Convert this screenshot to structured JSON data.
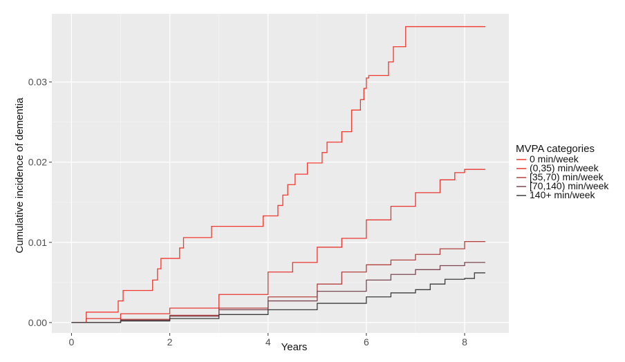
{
  "chart_data": {
    "type": "line",
    "step": true,
    "xlabel": "Years",
    "ylabel": "Cumulative incidence of dementia",
    "xlim": [
      -0.4,
      8.9
    ],
    "ylim": [
      -0.0013,
      0.0385
    ],
    "x_ticks": [
      0,
      2,
      4,
      6,
      8
    ],
    "x_tick_labels": [
      "0",
      "2",
      "4",
      "6",
      "8"
    ],
    "y_ticks": [
      0.0,
      0.01,
      0.02,
      0.03
    ],
    "y_tick_labels": [
      "0.00",
      "0.01",
      "0.02",
      "0.03"
    ],
    "grid": true,
    "background": "#ebebeb",
    "legend": {
      "title": "MVPA categories",
      "placement": "right"
    },
    "series": [
      {
        "name": "0 min/week",
        "color": "#f2372c",
        "points": [
          [
            0,
            0
          ],
          [
            0.3,
            0.0013
          ],
          [
            0.95,
            0.0027
          ],
          [
            1.05,
            0.004
          ],
          [
            1.65,
            0.0053
          ],
          [
            1.75,
            0.0067
          ],
          [
            1.82,
            0.008
          ],
          [
            2.2,
            0.0093
          ],
          [
            2.28,
            0.0106
          ],
          [
            2.85,
            0.012
          ],
          [
            3.9,
            0.0133
          ],
          [
            4.2,
            0.0146
          ],
          [
            4.3,
            0.0159
          ],
          [
            4.4,
            0.0172
          ],
          [
            4.55,
            0.0185
          ],
          [
            4.8,
            0.0199
          ],
          [
            5.1,
            0.0212
          ],
          [
            5.2,
            0.0225
          ],
          [
            5.5,
            0.0238
          ],
          [
            5.7,
            0.0265
          ],
          [
            5.88,
            0.0278
          ],
          [
            5.95,
            0.0292
          ],
          [
            6.0,
            0.0305
          ],
          [
            6.05,
            0.0308
          ],
          [
            6.45,
            0.0325
          ],
          [
            6.55,
            0.0344
          ],
          [
            6.8,
            0.0369
          ],
          [
            8.42,
            0.0369
          ]
        ]
      },
      {
        "name": "(0,35) min/week",
        "color": "#e8362f",
        "points": [
          [
            0,
            0
          ],
          [
            0.3,
            0.0005
          ],
          [
            1.0,
            0.0011
          ],
          [
            2.0,
            0.0018
          ],
          [
            3.0,
            0.0035
          ],
          [
            4.0,
            0.0063
          ],
          [
            4.5,
            0.0075
          ],
          [
            5.0,
            0.0094
          ],
          [
            5.5,
            0.0105
          ],
          [
            6.0,
            0.0128
          ],
          [
            6.5,
            0.0145
          ],
          [
            7.0,
            0.0162
          ],
          [
            7.5,
            0.0178
          ],
          [
            7.8,
            0.0187
          ],
          [
            8.0,
            0.0191
          ],
          [
            8.42,
            0.0191
          ]
        ]
      },
      {
        "name": "[35,70) min/week",
        "color": "#b2403c",
        "points": [
          [
            0,
            0
          ],
          [
            1.0,
            0.0004
          ],
          [
            2.0,
            0.0009
          ],
          [
            3.0,
            0.0018
          ],
          [
            4.0,
            0.0032
          ],
          [
            5.0,
            0.0048
          ],
          [
            5.5,
            0.0063
          ],
          [
            6.0,
            0.0072
          ],
          [
            6.5,
            0.0078
          ],
          [
            7.0,
            0.0085
          ],
          [
            7.5,
            0.0092
          ],
          [
            8.0,
            0.0101
          ],
          [
            8.42,
            0.0101
          ]
        ]
      },
      {
        "name": "[70,140) min/week",
        "color": "#7a4550",
        "points": [
          [
            0,
            0
          ],
          [
            1.0,
            0.0003
          ],
          [
            2.0,
            0.0008
          ],
          [
            3.0,
            0.0016
          ],
          [
            4.0,
            0.0027
          ],
          [
            5.0,
            0.0039
          ],
          [
            6.0,
            0.0053
          ],
          [
            6.5,
            0.006
          ],
          [
            7.0,
            0.0066
          ],
          [
            7.5,
            0.0071
          ],
          [
            8.0,
            0.0075
          ],
          [
            8.42,
            0.0075
          ]
        ]
      },
      {
        "name": "140+ min/week",
        "color": "#3a3a3a",
        "points": [
          [
            0,
            0
          ],
          [
            1.0,
            0.0002
          ],
          [
            2.0,
            0.0005
          ],
          [
            3.0,
            0.001
          ],
          [
            4.0,
            0.0016
          ],
          [
            5.0,
            0.0024
          ],
          [
            6.0,
            0.0032
          ],
          [
            6.5,
            0.0037
          ],
          [
            7.0,
            0.0041
          ],
          [
            7.3,
            0.0048
          ],
          [
            7.6,
            0.0054
          ],
          [
            8.0,
            0.0055
          ],
          [
            8.2,
            0.0062
          ],
          [
            8.42,
            0.0062
          ]
        ]
      }
    ]
  }
}
